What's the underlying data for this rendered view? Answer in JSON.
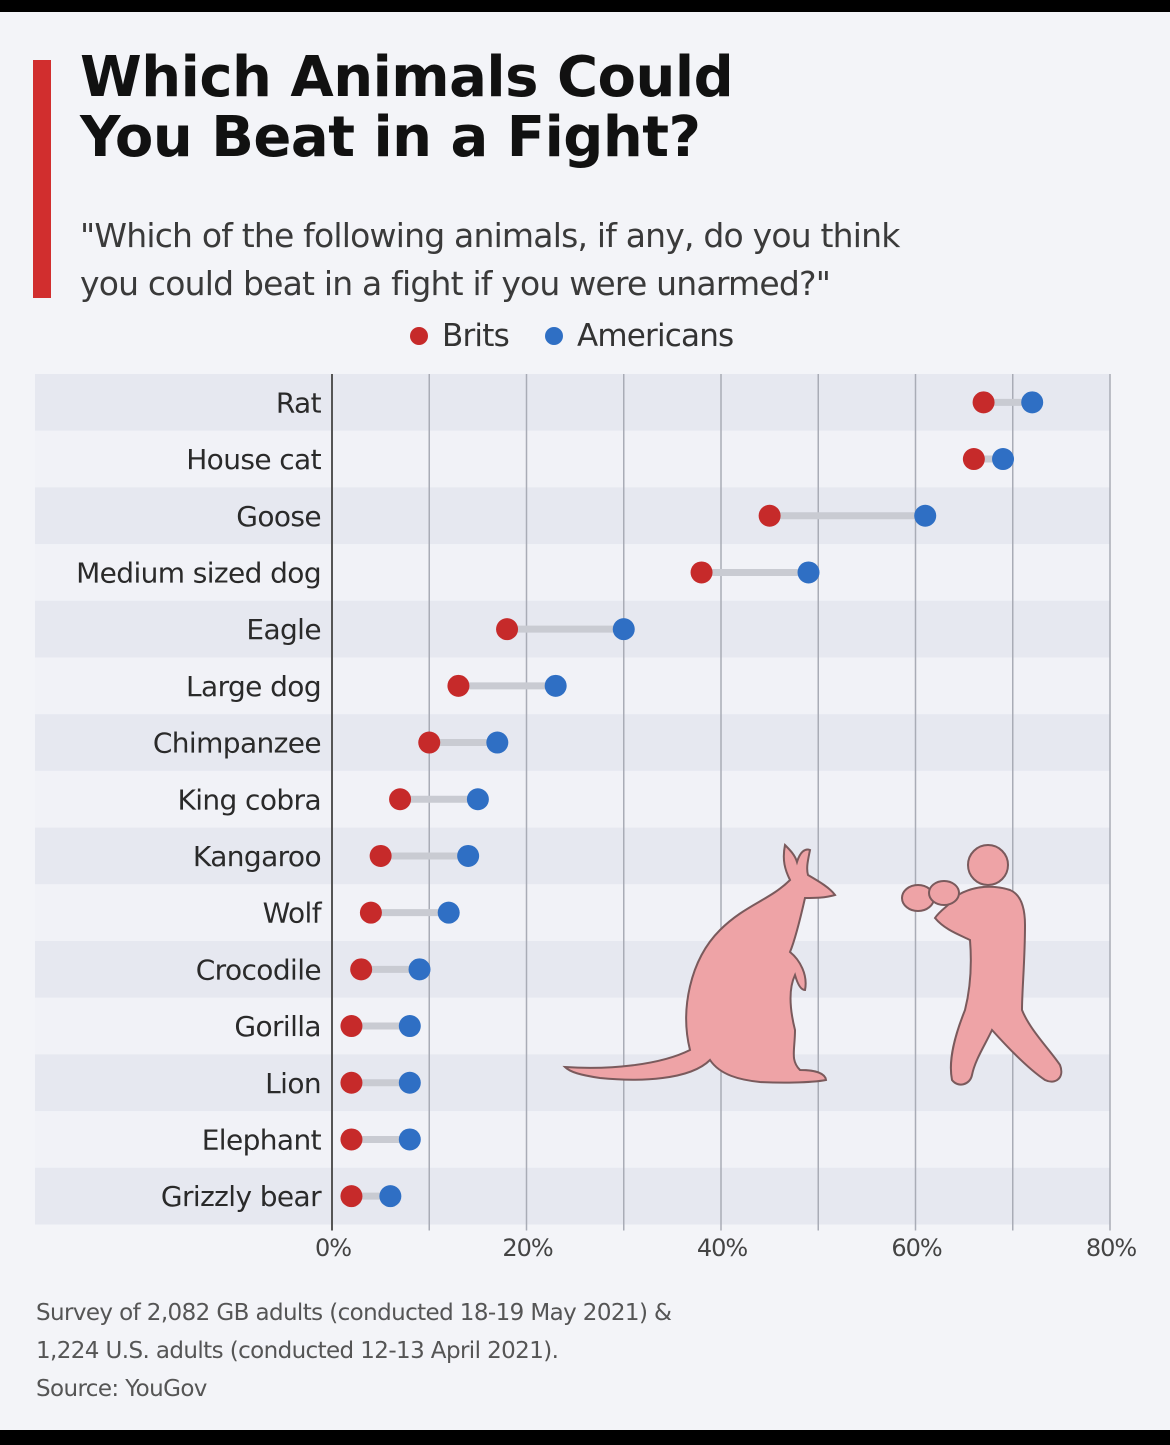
{
  "header": {
    "title_line1": "Which Animals Could",
    "title_line2": "You Beat in a Fight?",
    "subtitle_line1": "\"Which of the following animals, if any, do you think",
    "subtitle_line2": "you could beat in a fight if you were unarmed?\""
  },
  "colors": {
    "brits": "#c62a2a",
    "americans": "#2f6fc4",
    "connector": "#c9cbd2",
    "accent": "#d12e2e",
    "illustration": "#eea3a6"
  },
  "chart_data": {
    "type": "dumbbell",
    "title": "Which Animals Could You Beat in a Fight?",
    "subtitle": "\"Which of the following animals, if any, do you think you could beat in a fight if you were unarmed?\"",
    "xlabel": "",
    "ylabel": "",
    "xlim": [
      0,
      80
    ],
    "x_ticks": [
      "0%",
      "20%",
      "40%",
      "60%",
      "80%"
    ],
    "x_tick_values": [
      0,
      20,
      40,
      60,
      80
    ],
    "gridlines_every": 10,
    "legend_position": "top-center",
    "categories": [
      "Rat",
      "House cat",
      "Goose",
      "Medium sized dog",
      "Eagle",
      "Large dog",
      "Chimpanzee",
      "King cobra",
      "Kangaroo",
      "Wolf",
      "Crocodile",
      "Gorilla",
      "Lion",
      "Elephant",
      "Grizzly bear"
    ],
    "series": [
      {
        "name": "Brits",
        "values": [
          67,
          66,
          45,
          38,
          18,
          13,
          10,
          7,
          5,
          4,
          3,
          2,
          2,
          2,
          2
        ]
      },
      {
        "name": "Americans",
        "values": [
          72,
          69,
          61,
          49,
          30,
          23,
          17,
          15,
          14,
          12,
          9,
          8,
          8,
          8,
          6
        ]
      }
    ]
  },
  "footer": {
    "note_line1": "Survey of 2,082 GB adults (conducted 18-19 May 2021) &",
    "note_line2": "1,224 U.S. adults (conducted 12-13 April 2021).",
    "source": "Source: YouGov"
  }
}
